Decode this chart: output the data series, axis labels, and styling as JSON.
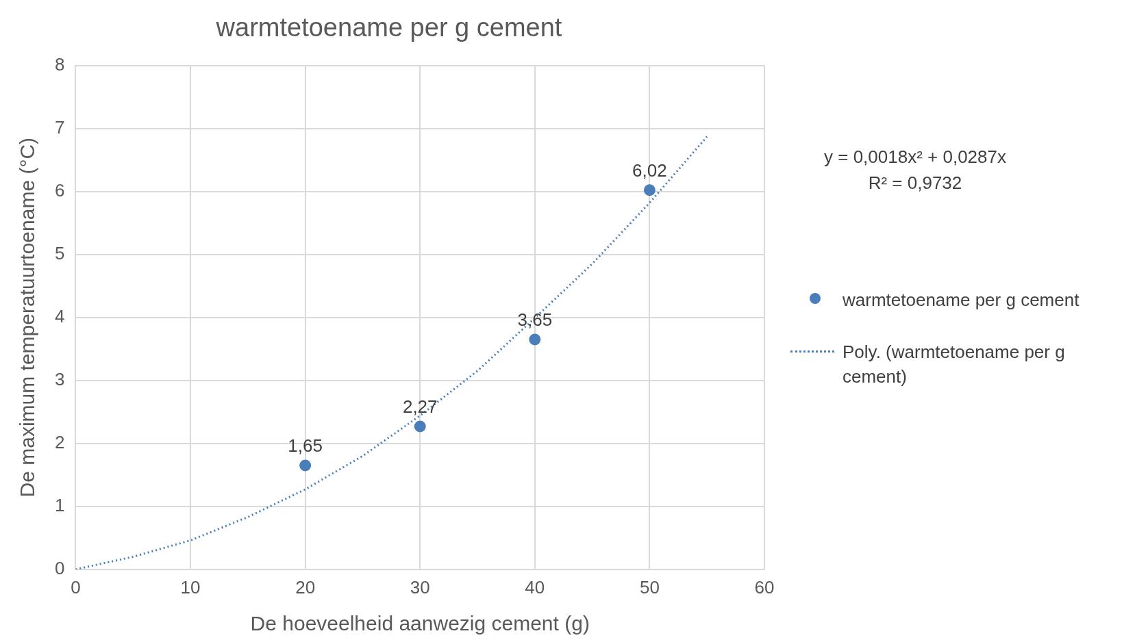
{
  "chart_data": {
    "type": "scatter",
    "title": "warmtetoename per g cement",
    "xlabel": "De hoeveelheid aanwezig cement (g)",
    "ylabel": "De maximum temperatuurtoename (°C)",
    "xlim": [
      0,
      60
    ],
    "xticks": [
      0,
      10,
      20,
      30,
      40,
      50,
      60
    ],
    "ylim": [
      0,
      8
    ],
    "yticks": [
      0,
      1,
      2,
      3,
      4,
      5,
      6,
      7,
      8
    ],
    "grid": true,
    "legend": "right",
    "marker": "circle",
    "series": [
      {
        "name": "warmtetoename per g cement",
        "color": "#4a7ebb",
        "x": [
          20,
          30,
          40,
          50
        ],
        "values": [
          1.65,
          2.27,
          3.65,
          6.02
        ],
        "value_labels": [
          "1,65",
          "2,27",
          "3,65",
          "6,02"
        ]
      },
      {
        "name": "Poly. (warmtetoename per g cement)",
        "type": "line",
        "color": "#4a7ebb",
        "line_style": "dotted",
        "marker": "none",
        "x": [
          0,
          5,
          10,
          15,
          20,
          25,
          30,
          35,
          40,
          45,
          50,
          55
        ],
        "values": [
          0,
          0.2,
          0.46,
          0.83,
          1.27,
          1.8,
          2.44,
          3.15,
          3.99,
          4.85,
          5.82,
          6.87
        ]
      }
    ],
    "annotations": [
      "y = 0,0018x² + 0,0287x",
      "R² = 0,9732"
    ]
  }
}
